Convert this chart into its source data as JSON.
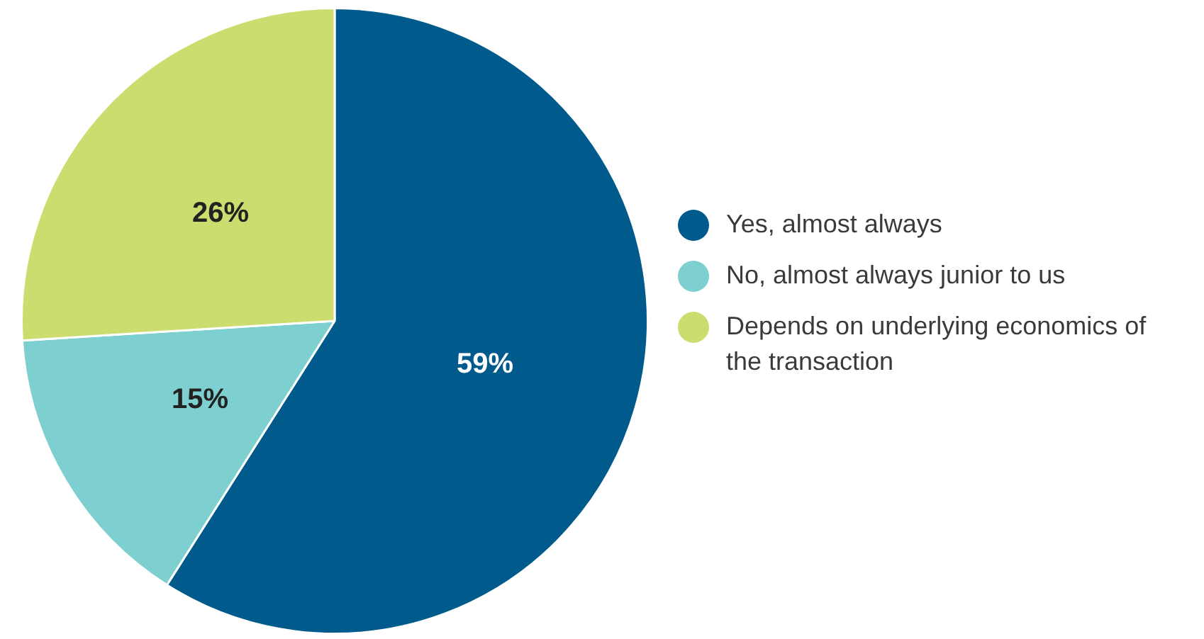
{
  "chart_data": {
    "type": "pie",
    "categories": [
      "Yes, almost always",
      "No, almost always junior to us",
      "Depends on underlying economics of the transaction"
    ],
    "values": [
      59,
      15,
      26
    ],
    "colors": [
      "#005a8c",
      "#7ecfcf",
      "#cddc6e"
    ],
    "value_labels": [
      "59%",
      "15%",
      "26%"
    ],
    "legend": "right"
  }
}
